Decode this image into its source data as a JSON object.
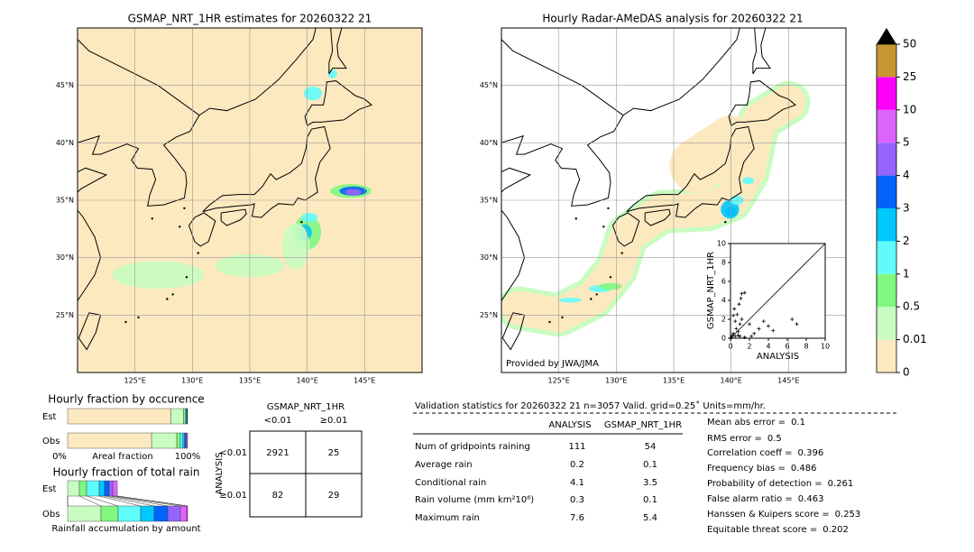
{
  "left_map": {
    "title": "GSMAP_NRT_1HR estimates for 20260322 21",
    "xlim": [
      120,
      150
    ],
    "ylim": [
      20,
      50
    ],
    "xticks": [
      {
        "value": 125,
        "label": "125°E"
      },
      {
        "value": 130,
        "label": "130°E"
      },
      {
        "value": 135,
        "label": "135°E"
      },
      {
        "value": 140,
        "label": "140°E"
      },
      {
        "value": 145,
        "label": "145°E"
      }
    ],
    "yticks": [
      {
        "value": 25,
        "label": "25°N"
      },
      {
        "value": 30,
        "label": "30°N"
      },
      {
        "value": 35,
        "label": "35°N"
      },
      {
        "value": 40,
        "label": "40°N"
      },
      {
        "value": 45,
        "label": "45°N"
      }
    ]
  },
  "right_map": {
    "title": "Hourly Radar-AMeDAS analysis for 20260322 21",
    "credit": "Provided by JWA/JMA",
    "xlim": [
      120,
      150
    ],
    "ylim": [
      20,
      50
    ],
    "xticks": [
      {
        "value": 125,
        "label": "125°E"
      },
      {
        "value": 130,
        "label": "130°E"
      },
      {
        "value": 135,
        "label": "135°E"
      },
      {
        "value": 140,
        "label": "140°E"
      },
      {
        "value": 145,
        "label": "145°E"
      }
    ],
    "yticks": [
      {
        "value": 25,
        "label": "25°N"
      },
      {
        "value": 30,
        "label": "30°N"
      },
      {
        "value": 35,
        "label": "35°N"
      },
      {
        "value": 40,
        "label": "40°N"
      },
      {
        "value": 45,
        "label": "45°N"
      }
    ]
  },
  "scatter": {
    "type": "scatter",
    "xlabel": "ANALYSIS",
    "ylabel": "GSMAP_NRT_1HR",
    "xlim": [
      0,
      10
    ],
    "ylim": [
      0,
      10
    ],
    "xticks": [
      0,
      2,
      4,
      6,
      8,
      10
    ],
    "yticks": [
      0,
      2,
      4,
      6,
      8,
      10
    ],
    "x": [
      0.1,
      0.2,
      0.3,
      0.5,
      0.6,
      0.8,
      1,
      1.2,
      1.5,
      0.4,
      0.7,
      1.1,
      2,
      2.5,
      3,
      3.5,
      4,
      4.5,
      6.5,
      7,
      1,
      1.5,
      0.5,
      0.3,
      0.8,
      1.2,
      2.2,
      0.9
    ],
    "y": [
      0.1,
      0.3,
      0.5,
      0.2,
      1,
      0.7,
      1.5,
      2,
      4.8,
      3.1,
      2.5,
      4.2,
      1.5,
      0.5,
      1,
      1.8,
      1.3,
      0.8,
      2,
      1.5,
      0.2,
      0.1,
      1.8,
      2.4,
      0.3,
      4.7,
      0.2,
      3.6
    ]
  },
  "colorbar": {
    "levels": [
      0,
      0.01,
      0.5,
      1,
      2,
      3,
      4,
      5,
      10,
      25,
      50
    ],
    "colors": [
      "#fde9c0",
      "#c8fcc0",
      "#80f880",
      "#60fcfc",
      "#00c8fc",
      "#0064fc",
      "#9664fc",
      "#dc64fc",
      "#fc00fc",
      "#c89632"
    ],
    "extend_color": "#000000"
  },
  "occurrence": {
    "title": "Hourly fraction by occurence",
    "xmin_label": "0%",
    "xlabel": "Areal fraction",
    "xmax_label": "100%",
    "rows": [
      {
        "label": "Est",
        "values": [
          86,
          10.5,
          1.5,
          0.8,
          0.6,
          0.3,
          0.3,
          0,
          0,
          0
        ]
      },
      {
        "label": "Obs",
        "values": [
          70,
          21,
          3,
          2,
          1.5,
          1,
          0.8,
          0.7,
          0,
          0
        ]
      }
    ]
  },
  "total_rain": {
    "title": "Hourly fraction of total rain",
    "xlabel": "Rainfall accumulation by amount",
    "rows": [
      {
        "label": "Est",
        "values": [
          0,
          9.8,
          6,
          10.5,
          4.5,
          3.8,
          3,
          3.8,
          0,
          0
        ]
      },
      {
        "label": "Obs",
        "values": [
          0,
          27.8,
          14.3,
          18.8,
          11.3,
          11.3,
          10.5,
          5.3,
          0.7,
          0
        ]
      }
    ]
  },
  "contingency": {
    "column_title": "GSMAP_NRT_1HR",
    "row_title": "ANALYSIS",
    "columns": [
      "<0.01",
      "≥0.01"
    ],
    "rows": [
      "<0.01",
      "≥0.01"
    ],
    "cells": [
      [
        2921,
        25
      ],
      [
        82,
        29
      ]
    ]
  },
  "validation": {
    "header": "Validation statistics for 20260322 21  n=3057 Valid. grid=0.25˚ Units=mm/hr.",
    "columns": [
      "ANALYSIS",
      "GSMAP_NRT_1HR"
    ],
    "rows": [
      {
        "label": "Num of gridpoints raining",
        "values": [
          111,
          54
        ]
      },
      {
        "label": "Average rain",
        "values": [
          0.2,
          0.1
        ]
      },
      {
        "label": "Conditional rain",
        "values": [
          4.1,
          3.5
        ]
      },
      {
        "label": "Rain volume (mm km²10⁶)",
        "values": [
          0.3,
          0.1
        ]
      },
      {
        "label": "Maximum rain",
        "values": [
          7.6,
          5.4
        ]
      }
    ]
  },
  "scores": [
    {
      "label": "Mean abs error =",
      "value": 0.1
    },
    {
      "label": "RMS error =",
      "value": 0.5
    },
    {
      "label": "Correlation coeff =",
      "value": 0.396
    },
    {
      "label": "Frequency bias =",
      "value": 0.486
    },
    {
      "label": "Probability of detection =",
      "value": 0.261
    },
    {
      "label": "False alarm ratio =",
      "value": 0.463
    },
    {
      "label": "Hanssen & Kuipers score =",
      "value": 0.253
    },
    {
      "label": "Equitable threat score =",
      "value": 0.202
    }
  ]
}
